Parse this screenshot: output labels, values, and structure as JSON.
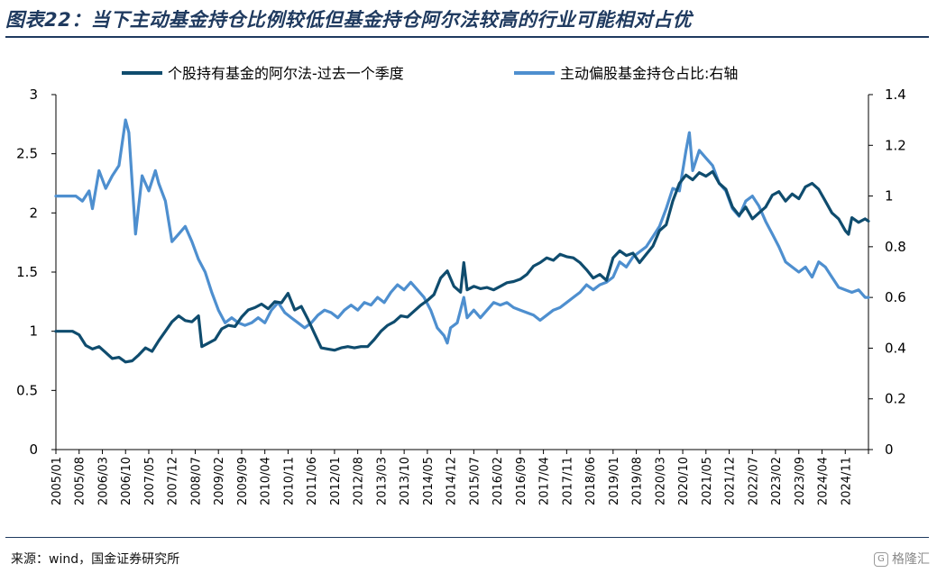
{
  "title": "图表22：当下主动基金持仓比例较低但基金持仓阿尔法较高的行业可能相对占优",
  "source": "来源：wind，国金证券研究所",
  "watermark": "格隆汇",
  "colors": {
    "series_dark": "#0f4c6e",
    "series_light": "#4e8fcf",
    "axis": "#000000",
    "rule": "#1f3a5f"
  },
  "chart_data": {
    "type": "line",
    "title": "",
    "xlabel": "",
    "ylabel": "",
    "ylim": [
      0,
      3
    ],
    "y2lim": [
      0,
      1.4
    ],
    "yticks": [
      "0",
      "0.5",
      "1",
      "1.5",
      "2",
      "2.5",
      "3"
    ],
    "y2ticks": [
      "0",
      "0.2",
      "0.4",
      "0.6",
      "0.8",
      "1",
      "1.2",
      "1.4"
    ],
    "x_start": "2005/01",
    "x_end": "2025/06",
    "x_tick_labels": [
      "2005/01",
      "2005/08",
      "2006/03",
      "2006/10",
      "2007/05",
      "2007/12",
      "2008/07",
      "2009/02",
      "2009/09",
      "2010/04",
      "2010/11",
      "2011/06",
      "2012/01",
      "2012/08",
      "2013/03",
      "2013/10",
      "2014/05",
      "2014/12",
      "2015/07",
      "2016/02",
      "2016/09",
      "2017/04",
      "2017/11",
      "2018/06",
      "2019/01",
      "2019/08",
      "2020/03",
      "2020/10",
      "2021/05",
      "2021/12",
      "2022/07",
      "2023/02",
      "2023/09",
      "2024/04",
      "2024/11"
    ],
    "legend_position": "top",
    "grid": false,
    "series": [
      {
        "name": "个股持有基金的阿尔法-过去一个季度",
        "axis": "left",
        "points": [
          [
            "2005/01",
            1.0
          ],
          [
            "2005/06",
            1.0
          ],
          [
            "2005/08",
            0.97
          ],
          [
            "2005/10",
            0.88
          ],
          [
            "2005/12",
            0.85
          ],
          [
            "2006/02",
            0.87
          ],
          [
            "2006/04",
            0.82
          ],
          [
            "2006/06",
            0.77
          ],
          [
            "2006/08",
            0.78
          ],
          [
            "2006/10",
            0.74
          ],
          [
            "2006/12",
            0.75
          ],
          [
            "2007/02",
            0.8
          ],
          [
            "2007/04",
            0.86
          ],
          [
            "2007/06",
            0.83
          ],
          [
            "2007/08",
            0.92
          ],
          [
            "2007/10",
            1.0
          ],
          [
            "2007/12",
            1.08
          ],
          [
            "2008/02",
            1.13
          ],
          [
            "2008/04",
            1.09
          ],
          [
            "2008/06",
            1.08
          ],
          [
            "2008/08",
            1.13
          ],
          [
            "2008/09",
            0.87
          ],
          [
            "2008/11",
            0.9
          ],
          [
            "2009/01",
            0.93
          ],
          [
            "2009/03",
            1.02
          ],
          [
            "2009/05",
            1.05
          ],
          [
            "2009/07",
            1.04
          ],
          [
            "2009/09",
            1.12
          ],
          [
            "2009/11",
            1.18
          ],
          [
            "2010/01",
            1.2
          ],
          [
            "2010/03",
            1.23
          ],
          [
            "2010/05",
            1.19
          ],
          [
            "2010/07",
            1.25
          ],
          [
            "2010/09",
            1.24
          ],
          [
            "2010/11",
            1.32
          ],
          [
            "2011/01",
            1.18
          ],
          [
            "2011/03",
            1.21
          ],
          [
            "2011/05",
            1.1
          ],
          [
            "2011/07",
            0.98
          ],
          [
            "2011/09",
            0.86
          ],
          [
            "2011/11",
            0.85
          ],
          [
            "2012/01",
            0.84
          ],
          [
            "2012/03",
            0.86
          ],
          [
            "2012/05",
            0.87
          ],
          [
            "2012/07",
            0.86
          ],
          [
            "2012/09",
            0.87
          ],
          [
            "2012/11",
            0.87
          ],
          [
            "2013/01",
            0.93
          ],
          [
            "2013/03",
            1.0
          ],
          [
            "2013/05",
            1.05
          ],
          [
            "2013/07",
            1.08
          ],
          [
            "2013/09",
            1.13
          ],
          [
            "2013/11",
            1.12
          ],
          [
            "2014/01",
            1.17
          ],
          [
            "2014/03",
            1.22
          ],
          [
            "2014/05",
            1.26
          ],
          [
            "2014/07",
            1.31
          ],
          [
            "2014/09",
            1.45
          ],
          [
            "2014/11",
            1.51
          ],
          [
            "2015/01",
            1.38
          ],
          [
            "2015/03",
            1.33
          ],
          [
            "2015/04",
            1.58
          ],
          [
            "2015/05",
            1.35
          ],
          [
            "2015/07",
            1.38
          ],
          [
            "2015/09",
            1.36
          ],
          [
            "2015/11",
            1.37
          ],
          [
            "2016/01",
            1.35
          ],
          [
            "2016/03",
            1.38
          ],
          [
            "2016/05",
            1.41
          ],
          [
            "2016/07",
            1.42
          ],
          [
            "2016/09",
            1.44
          ],
          [
            "2016/11",
            1.48
          ],
          [
            "2017/01",
            1.55
          ],
          [
            "2017/03",
            1.58
          ],
          [
            "2017/05",
            1.62
          ],
          [
            "2017/07",
            1.6
          ],
          [
            "2017/09",
            1.65
          ],
          [
            "2017/11",
            1.63
          ],
          [
            "2018/01",
            1.62
          ],
          [
            "2018/03",
            1.58
          ],
          [
            "2018/05",
            1.52
          ],
          [
            "2018/07",
            1.45
          ],
          [
            "2018/09",
            1.48
          ],
          [
            "2018/11",
            1.43
          ],
          [
            "2019/01",
            1.62
          ],
          [
            "2019/03",
            1.68
          ],
          [
            "2019/05",
            1.64
          ],
          [
            "2019/07",
            1.66
          ],
          [
            "2019/09",
            1.58
          ],
          [
            "2019/11",
            1.65
          ],
          [
            "2020/01",
            1.72
          ],
          [
            "2020/03",
            1.85
          ],
          [
            "2020/05",
            1.9
          ],
          [
            "2020/07",
            2.1
          ],
          [
            "2020/09",
            2.25
          ],
          [
            "2020/11",
            2.32
          ],
          [
            "2021/01",
            2.28
          ],
          [
            "2021/03",
            2.34
          ],
          [
            "2021/05",
            2.31
          ],
          [
            "2021/07",
            2.35
          ],
          [
            "2021/09",
            2.25
          ],
          [
            "2021/11",
            2.2
          ],
          [
            "2022/01",
            2.05
          ],
          [
            "2022/03",
            1.98
          ],
          [
            "2022/05",
            2.05
          ],
          [
            "2022/07",
            1.95
          ],
          [
            "2022/09",
            2.0
          ],
          [
            "2022/11",
            2.05
          ],
          [
            "2023/01",
            2.15
          ],
          [
            "2023/03",
            2.18
          ],
          [
            "2023/05",
            2.1
          ],
          [
            "2023/07",
            2.16
          ],
          [
            "2023/09",
            2.12
          ],
          [
            "2023/11",
            2.22
          ],
          [
            "2024/01",
            2.25
          ],
          [
            "2024/03",
            2.2
          ],
          [
            "2024/05",
            2.1
          ],
          [
            "2024/07",
            2.0
          ],
          [
            "2024/09",
            1.95
          ],
          [
            "2024/11",
            1.85
          ],
          [
            "2024/12",
            1.82
          ],
          [
            "2025/01",
            1.96
          ],
          [
            "2025/03",
            1.92
          ],
          [
            "2025/05",
            1.95
          ],
          [
            "2025/06",
            1.93
          ]
        ]
      },
      {
        "name": "主动偏股基金持仓占比:右轴",
        "axis": "right",
        "points": [
          [
            "2005/01",
            1.0
          ],
          [
            "2005/07",
            1.0
          ],
          [
            "2005/09",
            0.98
          ],
          [
            "2005/11",
            1.02
          ],
          [
            "2005/12",
            0.95
          ],
          [
            "2006/02",
            1.1
          ],
          [
            "2006/04",
            1.03
          ],
          [
            "2006/06",
            1.08
          ],
          [
            "2006/08",
            1.12
          ],
          [
            "2006/10",
            1.3
          ],
          [
            "2006/11",
            1.25
          ],
          [
            "2006/12",
            1.05
          ],
          [
            "2007/01",
            0.85
          ],
          [
            "2007/03",
            1.08
          ],
          [
            "2007/05",
            1.02
          ],
          [
            "2007/07",
            1.1
          ],
          [
            "2007/08",
            1.05
          ],
          [
            "2007/10",
            0.98
          ],
          [
            "2007/12",
            0.82
          ],
          [
            "2008/02",
            0.85
          ],
          [
            "2008/04",
            0.88
          ],
          [
            "2008/06",
            0.82
          ],
          [
            "2008/08",
            0.75
          ],
          [
            "2008/10",
            0.7
          ],
          [
            "2008/12",
            0.62
          ],
          [
            "2009/02",
            0.55
          ],
          [
            "2009/04",
            0.5
          ],
          [
            "2009/06",
            0.52
          ],
          [
            "2009/08",
            0.5
          ],
          [
            "2009/10",
            0.49
          ],
          [
            "2009/12",
            0.5
          ],
          [
            "2010/02",
            0.52
          ],
          [
            "2010/04",
            0.5
          ],
          [
            "2010/06",
            0.55
          ],
          [
            "2010/08",
            0.58
          ],
          [
            "2010/10",
            0.54
          ],
          [
            "2010/12",
            0.52
          ],
          [
            "2011/02",
            0.5
          ],
          [
            "2011/04",
            0.48
          ],
          [
            "2011/06",
            0.5
          ],
          [
            "2011/08",
            0.53
          ],
          [
            "2011/10",
            0.55
          ],
          [
            "2011/12",
            0.54
          ],
          [
            "2012/02",
            0.52
          ],
          [
            "2012/04",
            0.55
          ],
          [
            "2012/06",
            0.57
          ],
          [
            "2012/08",
            0.55
          ],
          [
            "2012/10",
            0.58
          ],
          [
            "2012/12",
            0.57
          ],
          [
            "2013/02",
            0.6
          ],
          [
            "2013/04",
            0.58
          ],
          [
            "2013/06",
            0.62
          ],
          [
            "2013/08",
            0.65
          ],
          [
            "2013/10",
            0.63
          ],
          [
            "2013/12",
            0.66
          ],
          [
            "2014/02",
            0.63
          ],
          [
            "2014/04",
            0.6
          ],
          [
            "2014/06",
            0.55
          ],
          [
            "2014/08",
            0.48
          ],
          [
            "2014/10",
            0.45
          ],
          [
            "2014/11",
            0.42
          ],
          [
            "2014/12",
            0.48
          ],
          [
            "2015/02",
            0.5
          ],
          [
            "2015/04",
            0.6
          ],
          [
            "2015/05",
            0.52
          ],
          [
            "2015/07",
            0.55
          ],
          [
            "2015/09",
            0.52
          ],
          [
            "2015/11",
            0.55
          ],
          [
            "2016/01",
            0.58
          ],
          [
            "2016/03",
            0.57
          ],
          [
            "2016/05",
            0.58
          ],
          [
            "2016/07",
            0.56
          ],
          [
            "2016/09",
            0.55
          ],
          [
            "2016/11",
            0.54
          ],
          [
            "2017/01",
            0.53
          ],
          [
            "2017/03",
            0.51
          ],
          [
            "2017/05",
            0.53
          ],
          [
            "2017/07",
            0.55
          ],
          [
            "2017/09",
            0.56
          ],
          [
            "2017/11",
            0.58
          ],
          [
            "2018/01",
            0.6
          ],
          [
            "2018/03",
            0.62
          ],
          [
            "2018/05",
            0.65
          ],
          [
            "2018/07",
            0.63
          ],
          [
            "2018/09",
            0.65
          ],
          [
            "2018/11",
            0.66
          ],
          [
            "2019/01",
            0.68
          ],
          [
            "2019/03",
            0.74
          ],
          [
            "2019/05",
            0.72
          ],
          [
            "2019/07",
            0.76
          ],
          [
            "2019/09",
            0.78
          ],
          [
            "2019/11",
            0.8
          ],
          [
            "2020/01",
            0.84
          ],
          [
            "2020/03",
            0.88
          ],
          [
            "2020/05",
            0.95
          ],
          [
            "2020/07",
            1.03
          ],
          [
            "2020/09",
            1.02
          ],
          [
            "2020/11",
            1.18
          ],
          [
            "2020/12",
            1.25
          ],
          [
            "2021/01",
            1.1
          ],
          [
            "2021/03",
            1.18
          ],
          [
            "2021/05",
            1.15
          ],
          [
            "2021/07",
            1.12
          ],
          [
            "2021/09",
            1.05
          ],
          [
            "2021/11",
            1.02
          ],
          [
            "2022/01",
            0.95
          ],
          [
            "2022/03",
            0.92
          ],
          [
            "2022/05",
            0.98
          ],
          [
            "2022/07",
            1.0
          ],
          [
            "2022/09",
            0.96
          ],
          [
            "2022/11",
            0.9
          ],
          [
            "2023/01",
            0.85
          ],
          [
            "2023/03",
            0.8
          ],
          [
            "2023/05",
            0.74
          ],
          [
            "2023/07",
            0.72
          ],
          [
            "2023/09",
            0.7
          ],
          [
            "2023/11",
            0.72
          ],
          [
            "2024/01",
            0.68
          ],
          [
            "2024/03",
            0.74
          ],
          [
            "2024/05",
            0.72
          ],
          [
            "2024/07",
            0.68
          ],
          [
            "2024/09",
            0.64
          ],
          [
            "2024/11",
            0.63
          ],
          [
            "2025/01",
            0.62
          ],
          [
            "2025/03",
            0.63
          ],
          [
            "2025/05",
            0.6
          ],
          [
            "2025/06",
            0.6
          ]
        ]
      }
    ]
  }
}
